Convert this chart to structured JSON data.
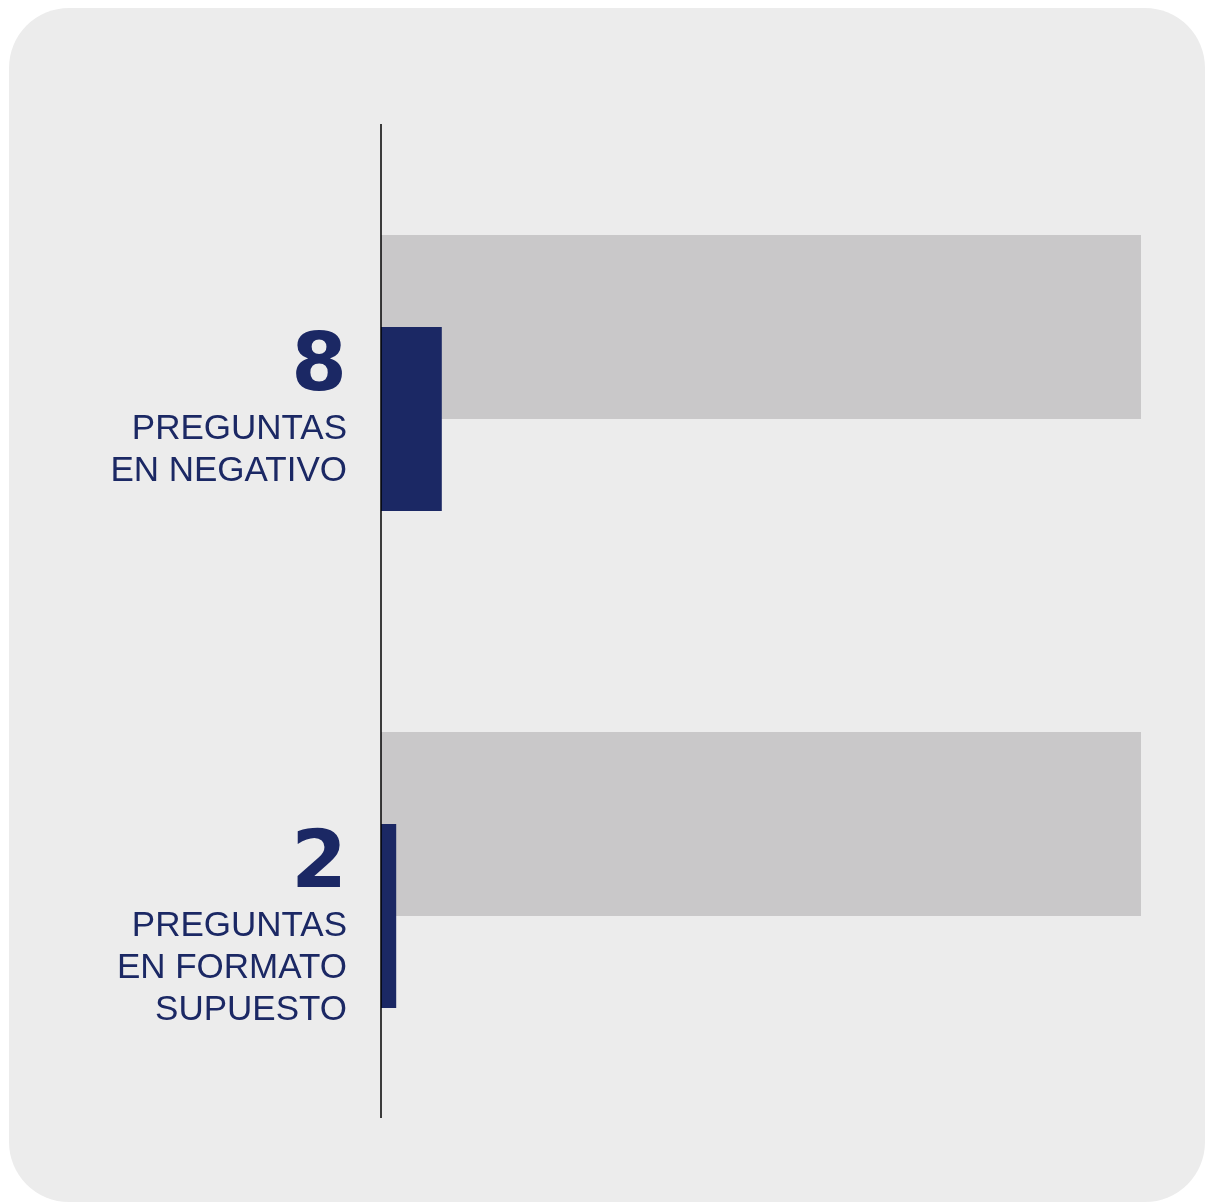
{
  "chart_data": {
    "type": "bar",
    "orientation": "horizontal",
    "categories": [
      "PREGUNTAS EN NEGATIVO",
      "PREGUNTAS EN FORMATO SUPUESTO"
    ],
    "series": [
      {
        "color": "#c9c8c9",
        "values": [
          100,
          100
        ]
      },
      {
        "color": "#1b2864",
        "values": [
          8,
          2
        ],
        "data_labels": true
      }
    ],
    "xlim": [
      0,
      100
    ],
    "tick_labels": "y"
  }
}
